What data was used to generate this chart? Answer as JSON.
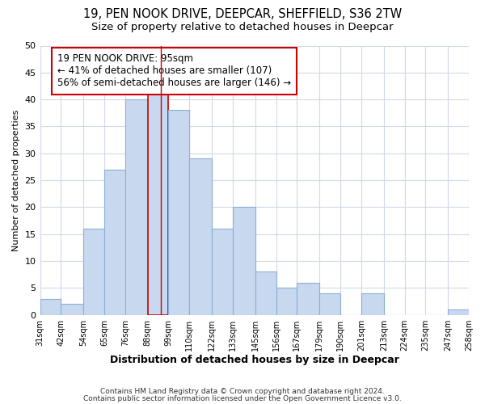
{
  "title": "19, PEN NOOK DRIVE, DEEPCAR, SHEFFIELD, S36 2TW",
  "subtitle": "Size of property relative to detached houses in Deepcar",
  "xlabel": "Distribution of detached houses by size in Deepcar",
  "ylabel": "Number of detached properties",
  "bins": [
    31,
    42,
    54,
    65,
    76,
    88,
    99,
    110,
    122,
    133,
    145,
    156,
    167,
    179,
    190,
    201,
    213,
    224,
    235,
    247,
    258
  ],
  "counts": [
    3,
    2,
    16,
    27,
    40,
    41,
    38,
    29,
    16,
    20,
    8,
    5,
    6,
    4,
    0,
    4,
    0,
    0,
    0,
    1
  ],
  "bar_color": "#c8d8ee",
  "bar_edge_color": "#8ab0d8",
  "highlight_bar_index": 5,
  "highlight_bar_edge_color": "#cc0000",
  "property_sqm": 95,
  "annotation_title": "19 PEN NOOK DRIVE: 95sqm",
  "annotation_line1": "← 41% of detached houses are smaller (107)",
  "annotation_line2": "56% of semi-detached houses are larger (146) →",
  "annotation_box_facecolor": "#ffffff",
  "annotation_box_edgecolor": "#cc0000",
  "ylim": [
    0,
    50
  ],
  "footer1": "Contains HM Land Registry data © Crown copyright and database right 2024.",
  "footer2": "Contains public sector information licensed under the Open Government Licence v3.0.",
  "fig_background_color": "#ffffff",
  "plot_background_color": "#ffffff",
  "grid_color": "#d0d8e8",
  "title_fontsize": 10.5,
  "subtitle_fontsize": 9.5,
  "tick_labels": [
    "31sqm",
    "42sqm",
    "54sqm",
    "65sqm",
    "76sqm",
    "88sqm",
    "99sqm",
    "110sqm",
    "122sqm",
    "133sqm",
    "145sqm",
    "156sqm",
    "167sqm",
    "179sqm",
    "190sqm",
    "201sqm",
    "213sqm",
    "224sqm",
    "235sqm",
    "247sqm",
    "258sqm"
  ]
}
